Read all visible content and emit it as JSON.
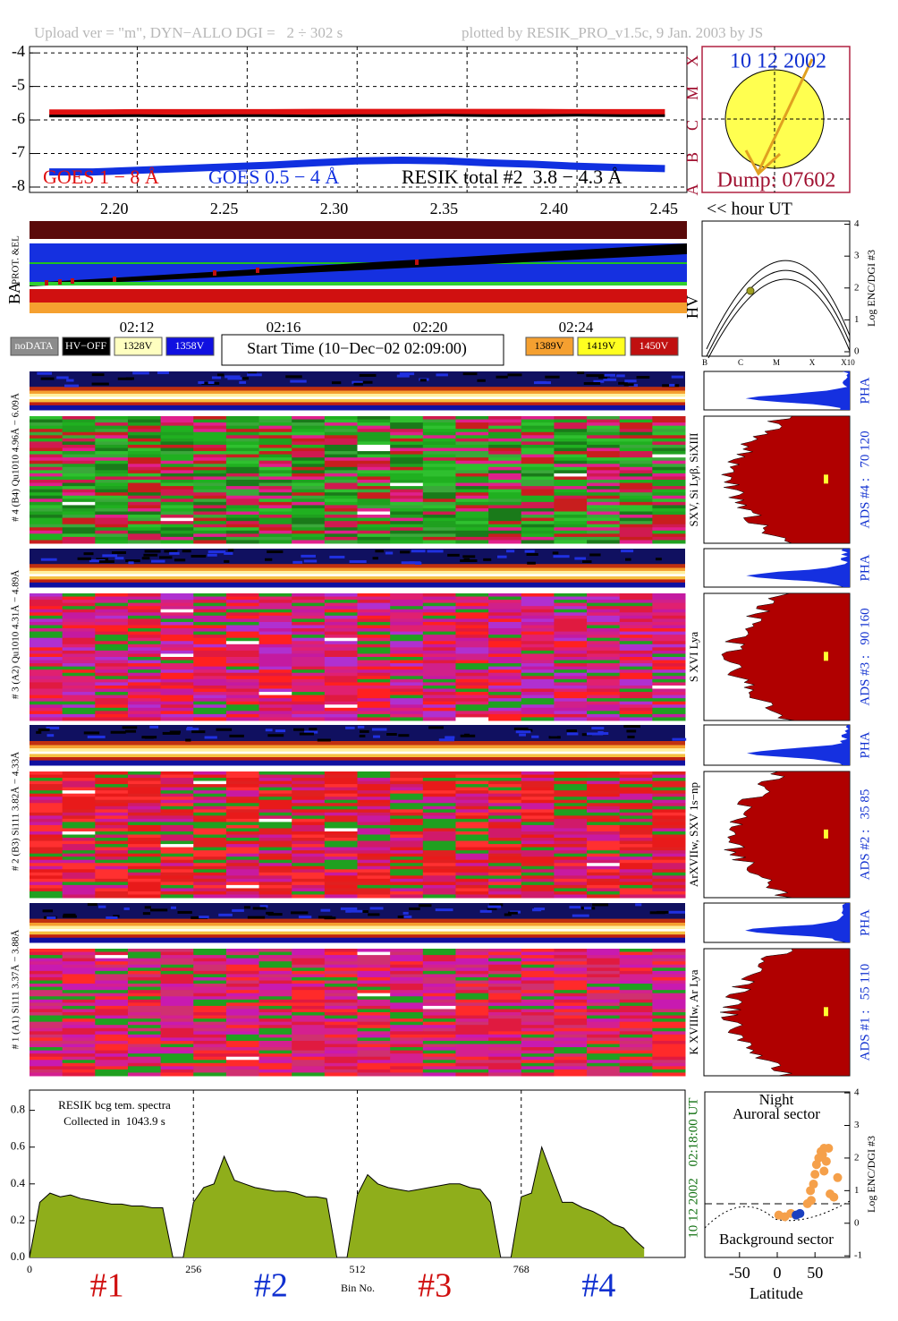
{
  "header": {
    "upload": "Upload ver = \"m\", DYN−ALLO DGI =   2 ÷ 302 s",
    "plotted": "plotted by RESIK_PRO_v1.5c, 9 Jan. 2003 by JS"
  },
  "sun_inset": {
    "date": "10 12 2002",
    "dump": "Dump: 07602"
  },
  "status_panel": {
    "ba_label": "BA",
    "prot_label": "PROT. &EL",
    "hv_label": "HV",
    "times": [
      "02:12",
      "02:16",
      "02:20",
      "02:24"
    ],
    "start_time": "Start Time (10−Dec−02 02:09:00)",
    "legend": [
      {
        "label": "noDATA",
        "color": "#8c8c8c"
      },
      {
        "label": "HV−OFF",
        "color": "#000000"
      },
      {
        "label": "1328V",
        "color": "#ffffc0"
      },
      {
        "label": "1358V",
        "color": "#1010e0"
      },
      {
        "label": "1389V",
        "color": "#f5a030"
      },
      {
        "label": "1419V",
        "color": "#ffff20"
      },
      {
        "label": "1450V",
        "color": "#c01010"
      }
    ]
  },
  "channels": [
    {
      "label": "# 4 (B4) Qu1010 4.96Å − 6.09Å",
      "lines": "SXV, Si Lyβ, SiXIII",
      "pha": "PHA",
      "ads": "ADS #4 :   70 120"
    },
    {
      "label": "# 3 (A2) Qu1010 4.31Å − 4.89Å",
      "lines": "S XVI Lya",
      "pha": "PHA",
      "ads": "ADS #3 :   90 160"
    },
    {
      "label": "# 2 (B3) Si111 3.82Å − 4.33Å",
      "lines": "ArXVIIw, SXV 1s−np",
      "pha": "PHA",
      "ads": "ADS #2 :   35 85"
    },
    {
      "label": "# 1 (A1) Si111 3.37Å − 3.88Å",
      "lines": "K XVIIIw, Ar Lya",
      "pha": "PHA",
      "ads": "ADS #1 :   55 110"
    }
  ],
  "chart_data": [
    {
      "type": "line",
      "x_label": "<< hour UT",
      "class_labels": [
        "X",
        "M",
        "C",
        "B",
        "A"
      ],
      "x": [
        2.16,
        2.18,
        2.2,
        2.22,
        2.24,
        2.26,
        2.28,
        2.3,
        2.32,
        2.34,
        2.36,
        2.38,
        2.4,
        2.42,
        2.44
      ],
      "series": [
        {
          "name": "GOES 1 − 8 Å",
          "color": "#e01010",
          "values": [
            -5.78,
            -5.78,
            -5.77,
            -5.77,
            -5.77,
            -5.77,
            -5.76,
            -5.76,
            -5.76,
            -5.76,
            -5.76,
            -5.76,
            -5.77,
            -5.77,
            -5.77
          ]
        },
        {
          "name": "GOES 0.5 − 4 Å",
          "color": "#1030e0",
          "values": [
            -7.55,
            -7.55,
            -7.5,
            -7.45,
            -7.4,
            -7.35,
            -7.28,
            -7.22,
            -7.2,
            -7.22,
            -7.28,
            -7.32,
            -7.38,
            -7.42,
            -7.45
          ]
        },
        {
          "name": "RESIK total #2  3.8 − 4.3 Å",
          "color": "#000000",
          "values": [
            -5.88,
            -5.88,
            -5.87,
            -5.88,
            -5.87,
            -5.87,
            -5.88,
            -5.87,
            -5.87,
            -5.86,
            -5.87,
            -5.87,
            -5.86,
            -5.87,
            -5.87
          ]
        }
      ],
      "xlim": [
        2.151,
        2.45
      ],
      "ylim": [
        -8.16,
        -3.81
      ],
      "xticks": [
        {
          "value": 2.2,
          "label": "2.20"
        },
        2.25,
        {
          "value": 2.3,
          "label": "2.30"
        },
        2.35,
        {
          "value": 2.4,
          "label": "2.40"
        },
        2.45
      ],
      "yticks": [
        -4,
        -5,
        -6,
        -7,
        -8
      ],
      "grid": true
    },
    {
      "type": "area",
      "title": "RESIK bcg tem. spectra",
      "subtitle": "Collected in  1043.9 s",
      "x_label": "Bin No.",
      "date": "10 12 2002",
      "time": "02:18:00 UT",
      "sections": [
        {
          "label": "#1",
          "color": "#d01010"
        },
        {
          "label": "#2",
          "color": "#1030d0"
        },
        {
          "label": "#3",
          "color": "#d01010"
        },
        {
          "label": "#4",
          "color": "#1030d0"
        }
      ],
      "x": [
        0,
        16,
        32,
        48,
        64,
        80,
        96,
        112,
        128,
        144,
        160,
        176,
        192,
        208,
        224,
        240,
        256,
        272,
        288,
        304,
        320,
        336,
        352,
        368,
        384,
        400,
        416,
        432,
        448,
        464,
        480,
        496,
        512,
        528,
        544,
        560,
        576,
        592,
        608,
        624,
        640,
        656,
        672,
        688,
        704,
        720,
        736,
        752,
        768,
        784,
        800,
        816,
        832,
        848,
        864,
        880,
        896,
        912,
        928,
        944,
        960
      ],
      "values": [
        0,
        0.3,
        0.35,
        0.33,
        0.34,
        0.32,
        0.31,
        0.3,
        0.29,
        0.29,
        0.28,
        0.28,
        0.27,
        0.27,
        0,
        0,
        0.3,
        0.38,
        0.4,
        0.55,
        0.42,
        0.4,
        0.38,
        0.37,
        0.36,
        0.36,
        0.35,
        0.33,
        0.33,
        0.32,
        0,
        0,
        0.34,
        0.45,
        0.4,
        0.38,
        0.37,
        0.36,
        0.37,
        0.38,
        0.39,
        0.4,
        0.4,
        0.38,
        0.37,
        0.3,
        0,
        0,
        0.33,
        0.35,
        0.6,
        0.45,
        0.3,
        0.3,
        0.27,
        0.25,
        0.22,
        0.18,
        0.16,
        0.1,
        0.05
      ],
      "color": "#8fae1b",
      "xlim": [
        0,
        1024
      ],
      "ylim": [
        0,
        0.91
      ],
      "xticks": [
        0,
        256,
        512,
        768
      ],
      "yticks": [
        {
          "value": 0,
          "label": "0.0"
        },
        0.2,
        0.4,
        0.6,
        0.8
      ],
      "grid": true
    },
    {
      "type": "scatter",
      "annotations": [
        "Night",
        "Auroral sector",
        "Background sector"
      ],
      "x_label": "Latitude",
      "y_label": "Log ENC/DGI #3",
      "series": [
        {
          "color": "#f5a04a",
          "x": [
            2,
            10,
            18,
            40,
            45,
            48,
            50,
            52,
            55,
            58,
            60,
            62,
            65,
            68,
            70,
            75,
            80,
            44,
            62
          ],
          "values": [
            0.25,
            0.2,
            0.3,
            0.6,
            0.7,
            1.2,
            1.5,
            1.8,
            2.0,
            2.2,
            2.1,
            1.6,
            1.9,
            2.3,
            0.9,
            0.8,
            1.4,
            1.0,
            2.3
          ]
        },
        {
          "color": "#1a3fc0",
          "x": [
            25,
            30
          ],
          "values": [
            0.25,
            0.3
          ]
        }
      ],
      "xlim": [
        -96,
        96
      ],
      "ylim": [
        -1.05,
        4.03
      ],
      "xticks": [
        -50,
        0,
        50
      ],
      "yticks": [
        -1,
        0,
        1,
        2,
        3,
        4
      ]
    },
    {
      "type": "line",
      "categories": [
        "B",
        "C",
        "M",
        "X",
        "X10"
      ],
      "y_label": "Log ENC/DGI #3",
      "ylim": [
        -0.14,
        4.1
      ],
      "yticks": [
        0,
        1,
        2,
        3,
        4
      ]
    }
  ]
}
